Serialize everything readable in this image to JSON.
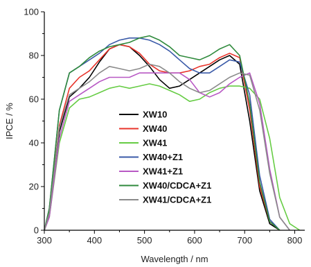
{
  "chart_data": {
    "type": "line",
    "xlabel": "Wavelength / nm",
    "ylabel": "IPCE / %",
    "xlim": [
      300,
      820
    ],
    "ylim": [
      0,
      100
    ],
    "xticks": [
      300,
      400,
      500,
      600,
      700,
      800
    ],
    "yticks": [
      0,
      20,
      40,
      60,
      80,
      100
    ],
    "grid": false,
    "legend": "center-bottom",
    "series": [
      {
        "name": "XW10",
        "color": "#000000",
        "x": [
          300,
          310,
          330,
          350,
          370,
          390,
          410,
          430,
          450,
          470,
          490,
          510,
          530,
          550,
          570,
          590,
          610,
          630,
          650,
          670,
          690,
          710,
          730,
          750,
          770
        ],
        "y": [
          0,
          8,
          45,
          61,
          65,
          70,
          77,
          83,
          85,
          84,
          80,
          75,
          69,
          65,
          66,
          69,
          72,
          75,
          78,
          80,
          76,
          50,
          18,
          3,
          0
        ]
      },
      {
        "name": "XW40",
        "color": "#e8332a",
        "x": [
          300,
          310,
          330,
          350,
          370,
          390,
          410,
          430,
          450,
          470,
          490,
          510,
          530,
          550,
          570,
          590,
          610,
          630,
          650,
          670,
          690,
          710,
          730,
          750,
          770
        ],
        "y": [
          0,
          8,
          48,
          65,
          70,
          73,
          78,
          83,
          85,
          84,
          81,
          76,
          73,
          72,
          72,
          73,
          75,
          76,
          79,
          81,
          79,
          55,
          20,
          4,
          0
        ]
      },
      {
        "name": "XW41",
        "color": "#66cc44",
        "x": [
          300,
          310,
          330,
          350,
          370,
          390,
          410,
          430,
          450,
          470,
          490,
          510,
          530,
          550,
          570,
          590,
          610,
          630,
          650,
          670,
          690,
          710,
          730,
          750,
          770,
          790,
          810
        ],
        "y": [
          0,
          6,
          40,
          56,
          60,
          61,
          63,
          65,
          66,
          65,
          66,
          67,
          66,
          64,
          62,
          59,
          60,
          63,
          65,
          66,
          66,
          65,
          60,
          42,
          15,
          3,
          0
        ]
      },
      {
        "name": "XW40+Z1",
        "color": "#3a5aa8",
        "x": [
          300,
          310,
          330,
          350,
          370,
          390,
          410,
          430,
          450,
          470,
          490,
          510,
          530,
          550,
          570,
          590,
          610,
          630,
          650,
          670,
          690,
          710,
          730,
          750,
          770
        ],
        "y": [
          0,
          10,
          55,
          72,
          75,
          78,
          81,
          85,
          87,
          88,
          88,
          87,
          85,
          82,
          78,
          74,
          72,
          72,
          75,
          78,
          77,
          62,
          25,
          5,
          0
        ]
      },
      {
        "name": "XW41+Z1",
        "color": "#b858c4",
        "x": [
          300,
          310,
          330,
          350,
          370,
          390,
          410,
          430,
          450,
          470,
          490,
          510,
          530,
          550,
          570,
          590,
          610,
          630,
          650,
          670,
          690,
          710,
          730,
          750,
          770,
          790
        ],
        "y": [
          0,
          6,
          42,
          59,
          62,
          65,
          68,
          70,
          70,
          70,
          72,
          72,
          72,
          72,
          72,
          69,
          63,
          61,
          63,
          67,
          70,
          72,
          58,
          28,
          6,
          0
        ]
      },
      {
        "name": "XW40/CDCA+Z1",
        "color": "#2f8a3c",
        "x": [
          300,
          310,
          330,
          350,
          370,
          390,
          410,
          430,
          450,
          470,
          490,
          510,
          530,
          550,
          570,
          590,
          610,
          630,
          650,
          670,
          690,
          710,
          730,
          750,
          770
        ],
        "y": [
          0,
          10,
          55,
          72,
          75,
          79,
          82,
          84,
          85,
          86,
          88,
          89,
          87,
          84,
          80,
          79,
          78,
          80,
          83,
          85,
          80,
          58,
          22,
          4,
          0
        ]
      },
      {
        "name": "XW41/CDCA+Z1",
        "color": "#8a8a8a",
        "x": [
          300,
          310,
          330,
          350,
          370,
          390,
          410,
          430,
          450,
          470,
          490,
          510,
          530,
          550,
          570,
          590,
          610,
          630,
          650,
          670,
          690,
          710,
          730,
          750,
          770,
          790
        ],
        "y": [
          0,
          8,
          47,
          62,
          65,
          68,
          72,
          75,
          74,
          73,
          74,
          76,
          75,
          72,
          68,
          65,
          63,
          64,
          67,
          70,
          72,
          71,
          55,
          26,
          6,
          0
        ]
      }
    ]
  }
}
